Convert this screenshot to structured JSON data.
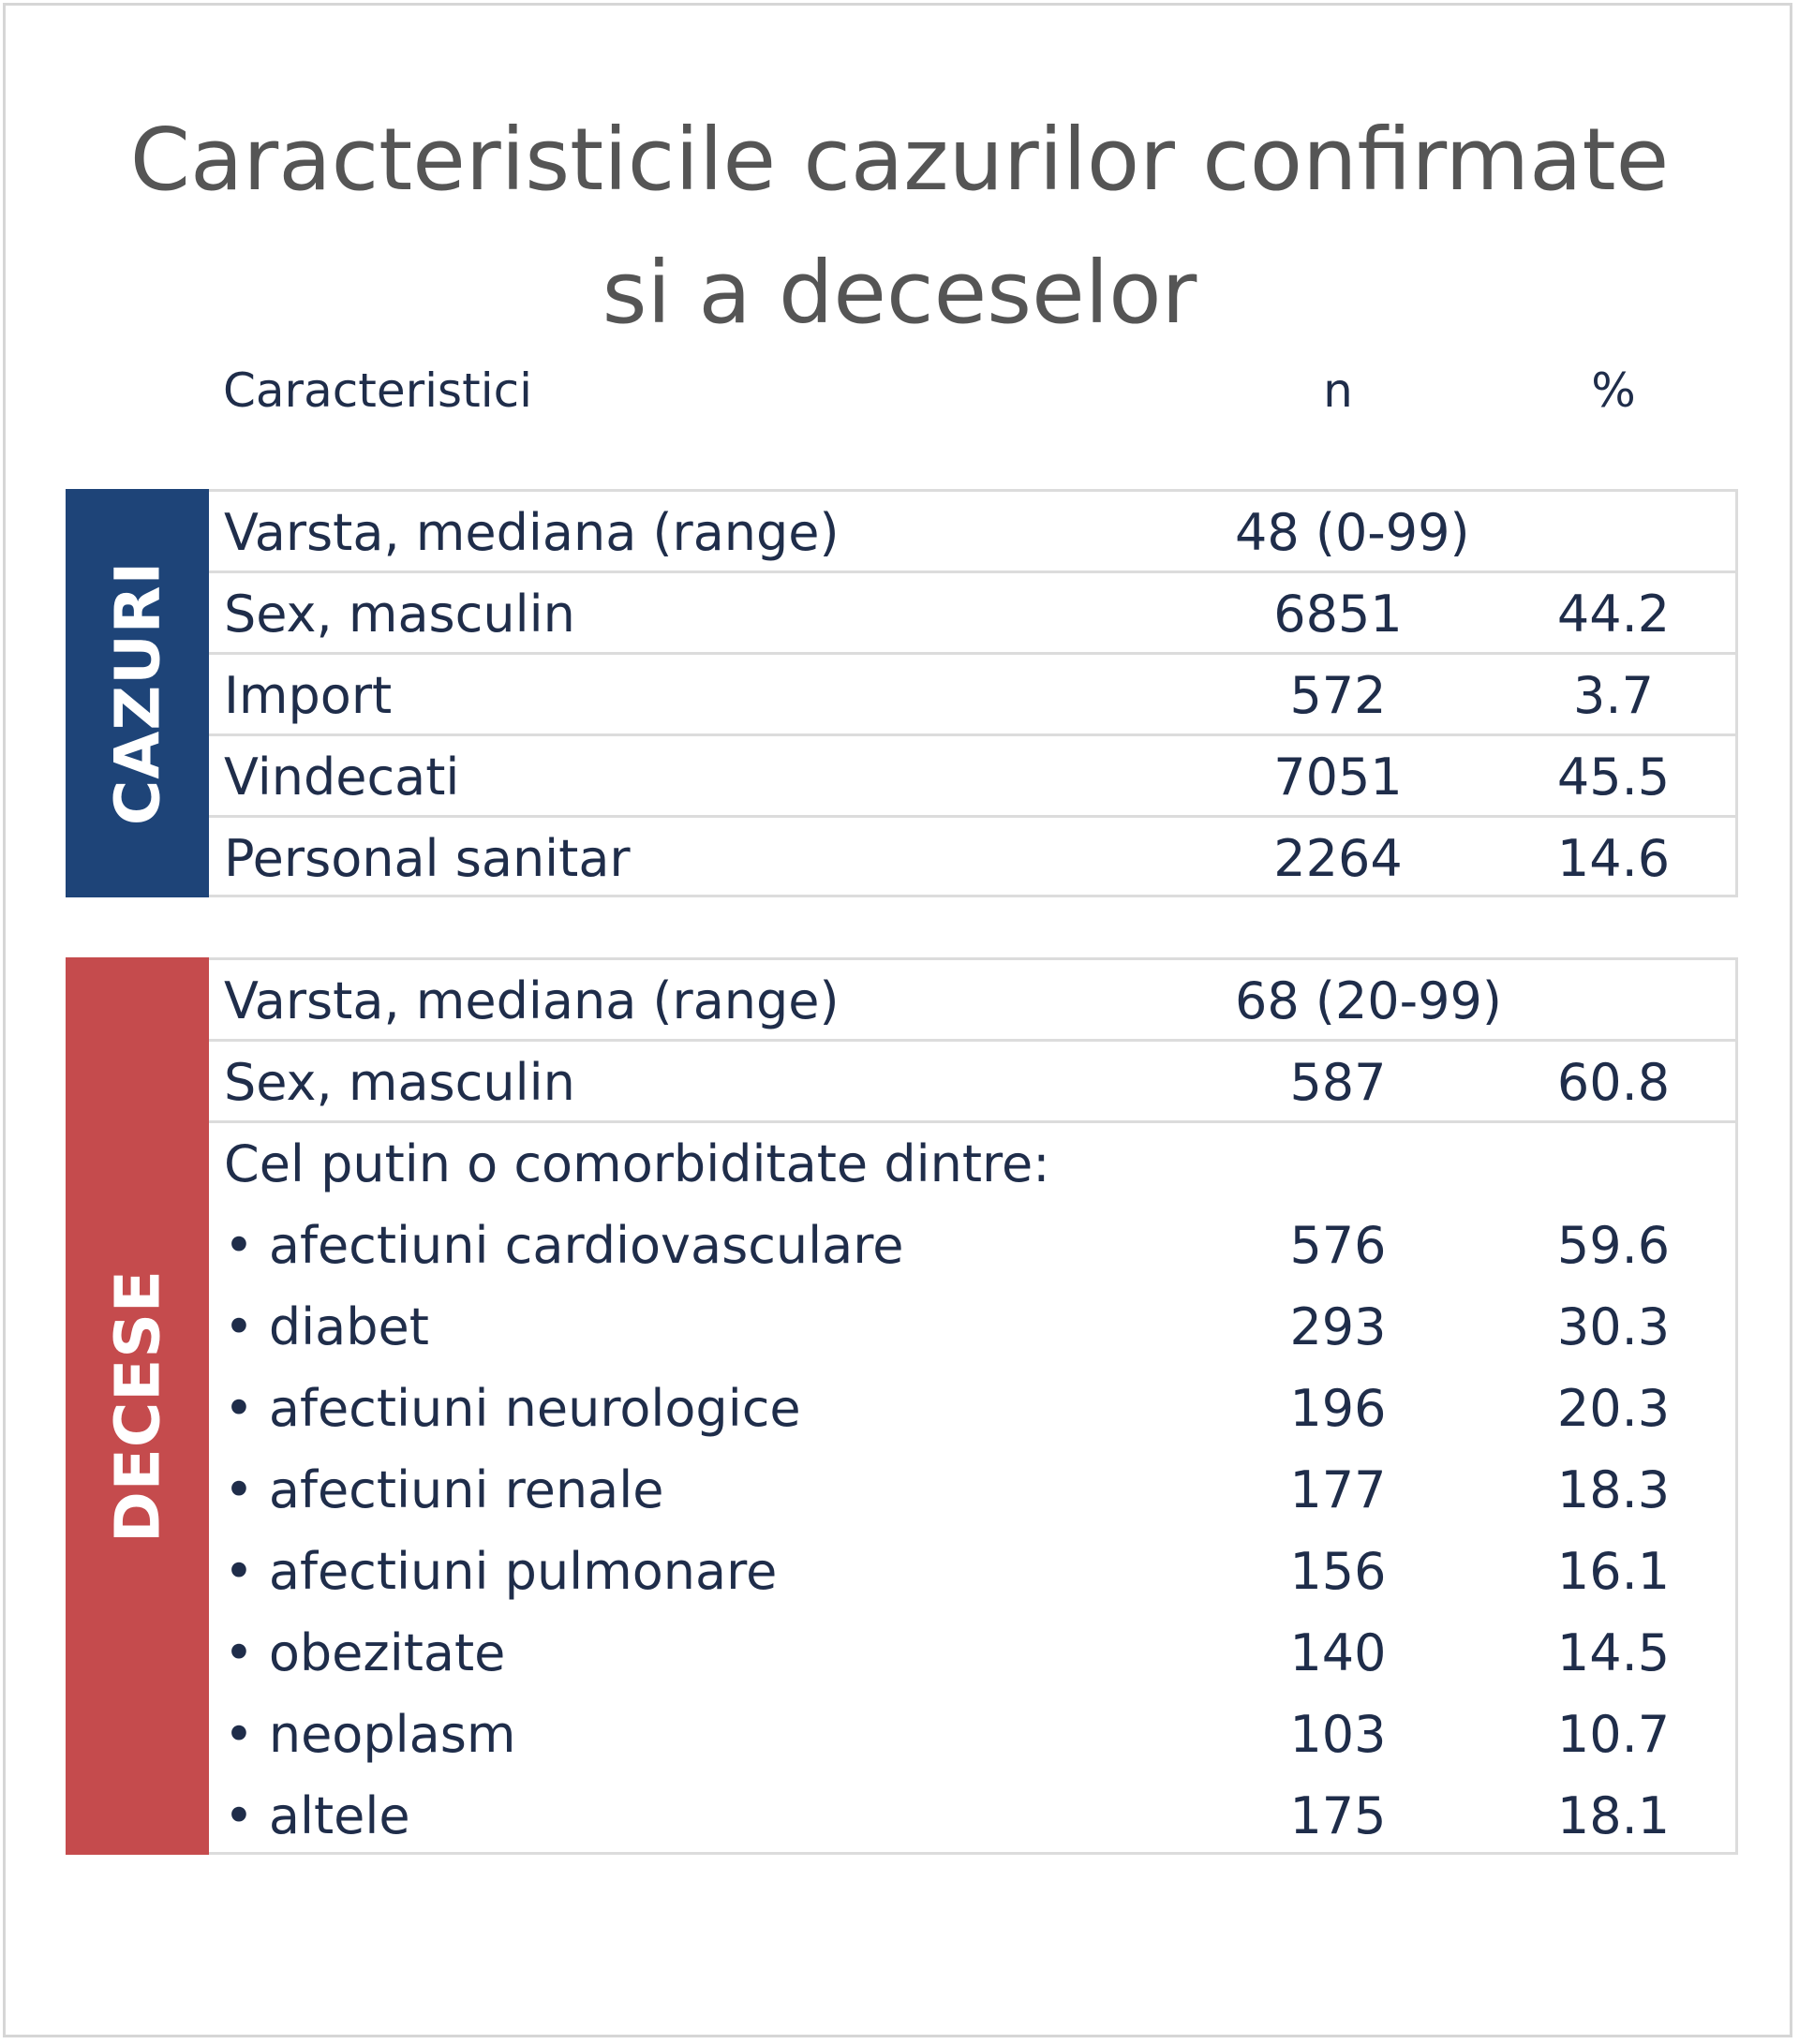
{
  "title": {
    "line1": "Caracteristicile cazurilor confirmate",
    "line2": "si a deceselor"
  },
  "header": {
    "label": "Caracteristici",
    "n": "n",
    "pct": "%"
  },
  "cazuri": {
    "band_label": "CAZURI",
    "band_color": "#1e4478",
    "rows": [
      {
        "label": "Varsta, mediana (range)",
        "n": "48 (0-99)",
        "pct": ""
      },
      {
        "label": "Sex, masculin",
        "n": "6851",
        "pct": "44.2"
      },
      {
        "label": "Import",
        "n": "572",
        "pct": "3.7"
      },
      {
        "label": "Vindecati",
        "n": "7051",
        "pct": "45.5"
      },
      {
        "label": "Personal sanitar",
        "n": "2264",
        "pct": "14.6"
      }
    ]
  },
  "decese": {
    "band_label": "DECESE",
    "band_color": "#c54b4d",
    "rows": [
      {
        "label": "Varsta, mediana (range)",
        "n": "68 (20-99)",
        "pct": ""
      },
      {
        "label": "Sex, masculin",
        "n": "587",
        "pct": "60.8"
      },
      {
        "label": "Cel putin o comorbiditate dintre:",
        "n": "",
        "pct": ""
      },
      {
        "label": "afectiuni cardiovasculare",
        "n": "576",
        "pct": "59.6"
      },
      {
        "label": "diabet",
        "n": "293",
        "pct": "30.3"
      },
      {
        "label": "afectiuni neurologice",
        "n": "196",
        "pct": "20.3"
      },
      {
        "label": "afectiuni renale",
        "n": "177",
        "pct": "18.3"
      },
      {
        "label": "afectiuni pulmonare",
        "n": "156",
        "pct": "16.1"
      },
      {
        "label": "obezitate",
        "n": "140",
        "pct": "14.5"
      },
      {
        "label": "neoplasm",
        "n": "103",
        "pct": "10.7"
      },
      {
        "label": "altele",
        "n": "175",
        "pct": "18.1"
      }
    ]
  },
  "bullet_glyph": "•"
}
